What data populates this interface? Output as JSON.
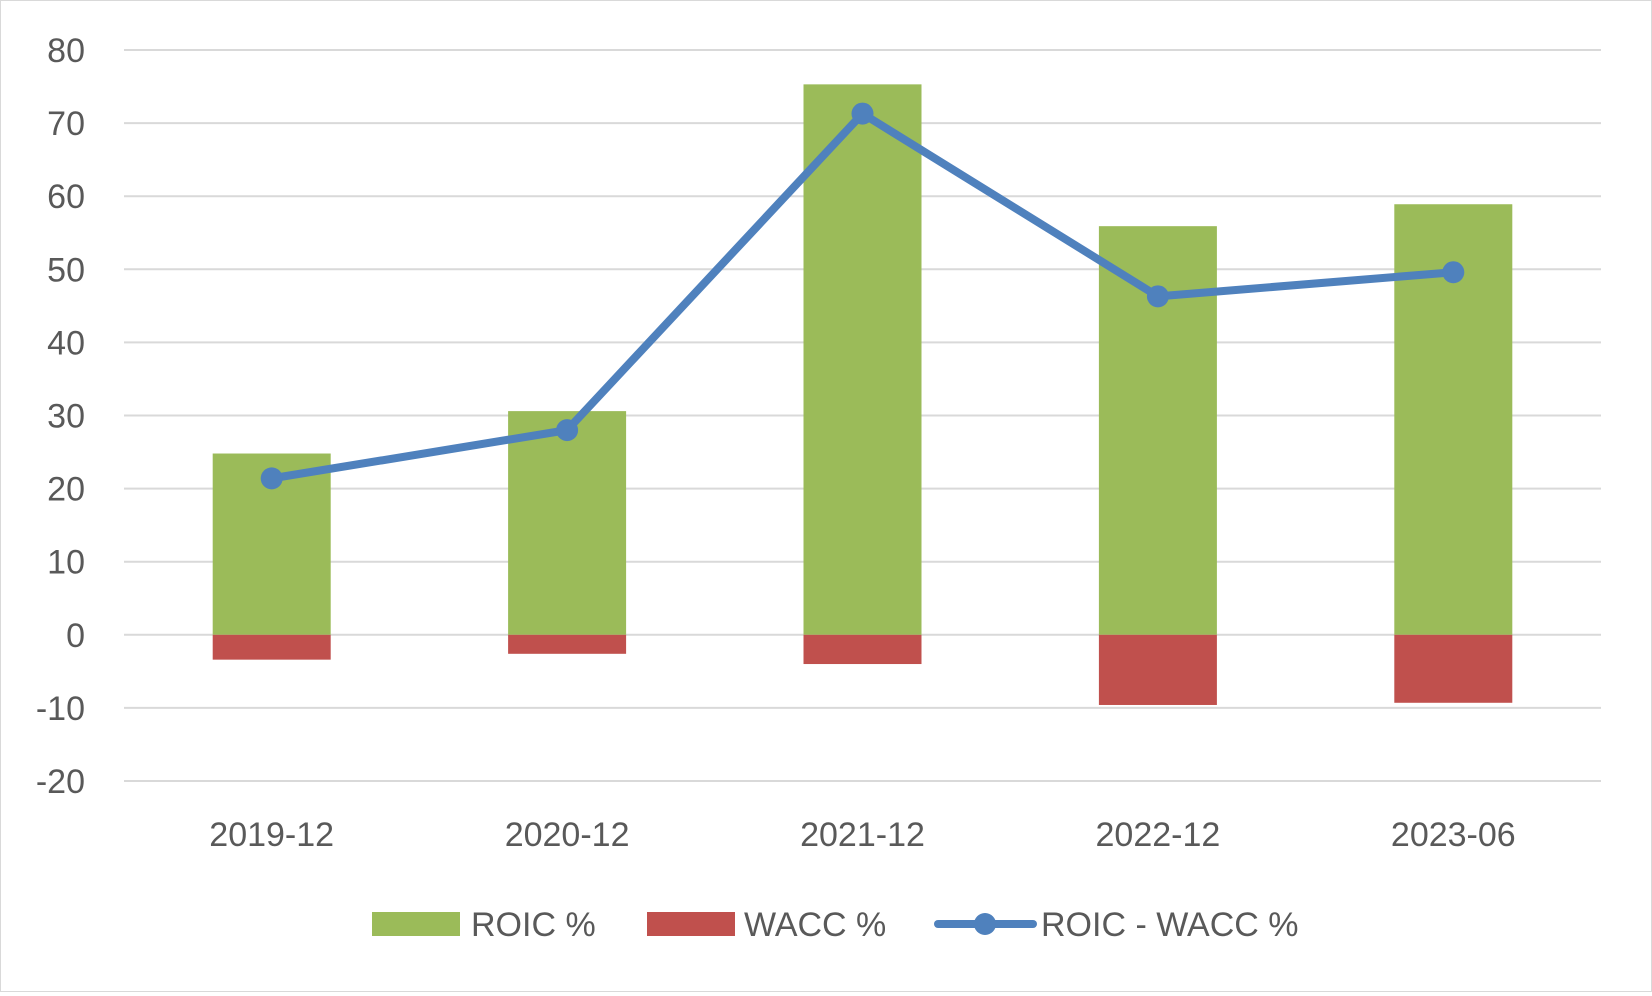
{
  "chart_data": {
    "type": "bar",
    "title": "",
    "xlabel": "",
    "ylabel": "",
    "categories": [
      "2019-12",
      "2020-12",
      "2021-12",
      "2022-12",
      "2023-06"
    ],
    "ylim": [
      -20,
      80
    ],
    "yticks": [
      80,
      70,
      60,
      50,
      40,
      30,
      20,
      10,
      0,
      -10,
      -20
    ],
    "grid": true,
    "legend_position": "bottom",
    "series": [
      {
        "name": "ROIC %",
        "kind": "bar",
        "color": "#9BBB59",
        "values": [
          24.8,
          30.6,
          75.3,
          55.9,
          58.9
        ]
      },
      {
        "name": "WACC %",
        "kind": "bar",
        "color": "#C0504D",
        "values": [
          -3.4,
          -2.6,
          -4.0,
          -9.6,
          -9.3
        ]
      },
      {
        "name": "ROIC - WACC %",
        "kind": "line",
        "color": "#4F81BD",
        "values": [
          21.4,
          28.0,
          71.3,
          46.3,
          49.6
        ]
      }
    ]
  }
}
